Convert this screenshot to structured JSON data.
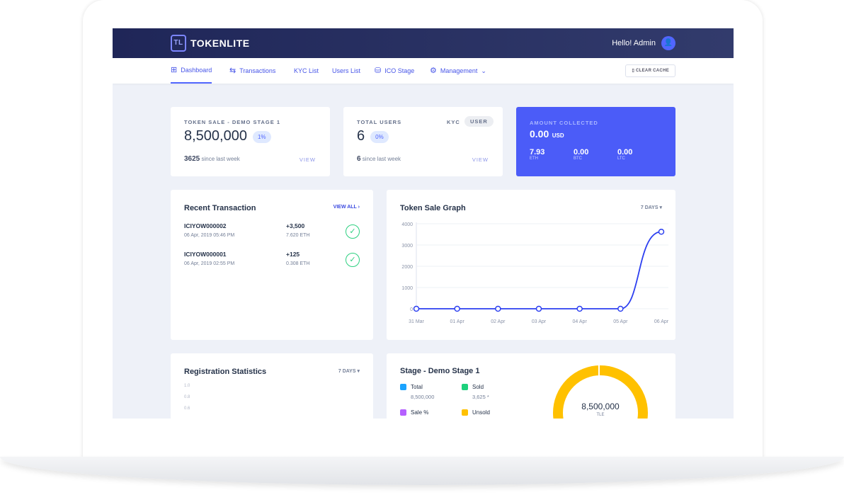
{
  "header": {
    "brand": "TOKENLITE",
    "greeting": "Hello! Admin"
  },
  "nav": {
    "items": [
      {
        "label": "Dashboard",
        "icon": "grid-icon"
      },
      {
        "label": "Transactions",
        "icon": "transfer-icon"
      },
      {
        "label": "KYC List"
      },
      {
        "label": "Users List"
      },
      {
        "label": "ICO Stage",
        "icon": "coins-icon"
      },
      {
        "label": "Management",
        "icon": "gear-icon"
      }
    ],
    "clear_cache": "CLEAR CACHE"
  },
  "token_card": {
    "label": "TOKEN SALE - DEMO STAGE 1",
    "value": "8,500,000",
    "pill": "1%",
    "since_value": "3625",
    "since_text": "since last week",
    "view": "VIEW"
  },
  "users_card": {
    "label": "TOTAL USERS",
    "value": "6",
    "pill": "0%",
    "tab_kyc": "KYC",
    "tab_user": "USER",
    "since_value": "6",
    "since_text": "since last week",
    "view": "VIEW"
  },
  "amount_card": {
    "label": "AMOUNT COLLECTED",
    "value": "0.00",
    "unit": "USD",
    "coins": [
      {
        "value": "7.93",
        "unit": "ETH"
      },
      {
        "value": "0.00",
        "unit": "BTC"
      },
      {
        "value": "0.00",
        "unit": "LTC"
      }
    ]
  },
  "recent": {
    "title": "Recent Transaction",
    "view_all": "VIEW ALL",
    "rows": [
      {
        "id": "ICIYOW000002",
        "date": "06 Apr, 2019 05:46 PM",
        "amount": "+3,500",
        "eth": "7.620 ETH"
      },
      {
        "id": "ICIYOW000001",
        "date": "06 Apr, 2019 02:55 PM",
        "amount": "+125",
        "eth": "0.308 ETH"
      }
    ]
  },
  "chart_data": {
    "type": "line",
    "title": "Token Sale Graph",
    "range_label": "7 DAYS",
    "categories": [
      "31 Mar",
      "01 Apr",
      "02 Apr",
      "03 Apr",
      "04 Apr",
      "05 Apr",
      "06 Apr"
    ],
    "values": [
      0,
      0,
      0,
      0,
      0,
      0,
      3625
    ],
    "ylim": [
      0,
      4000
    ],
    "yticks": [
      "0",
      "1000",
      "2000",
      "3000",
      "4000"
    ],
    "grid": true,
    "color": "#2c3ff0"
  },
  "registration": {
    "title": "Registration Statistics",
    "range_label": "7 DAYS",
    "yticks": [
      "1.0",
      "0.8",
      "0.6"
    ]
  },
  "stage": {
    "title": "Stage - Demo Stage 1",
    "legend": [
      {
        "label": "Total",
        "value": "8,500,000",
        "color": "#1aa3ff"
      },
      {
        "label": "Sold",
        "value": "3,625 *",
        "color": "#1ed17c"
      },
      {
        "label": "Sale %",
        "value": "",
        "color": "#b560ff"
      },
      {
        "label": "Unsold",
        "value": "",
        "color": "#ffc100"
      }
    ],
    "donut_value": "8,500,000",
    "donut_unit": "TLE",
    "donut_color": "#ffc100"
  }
}
